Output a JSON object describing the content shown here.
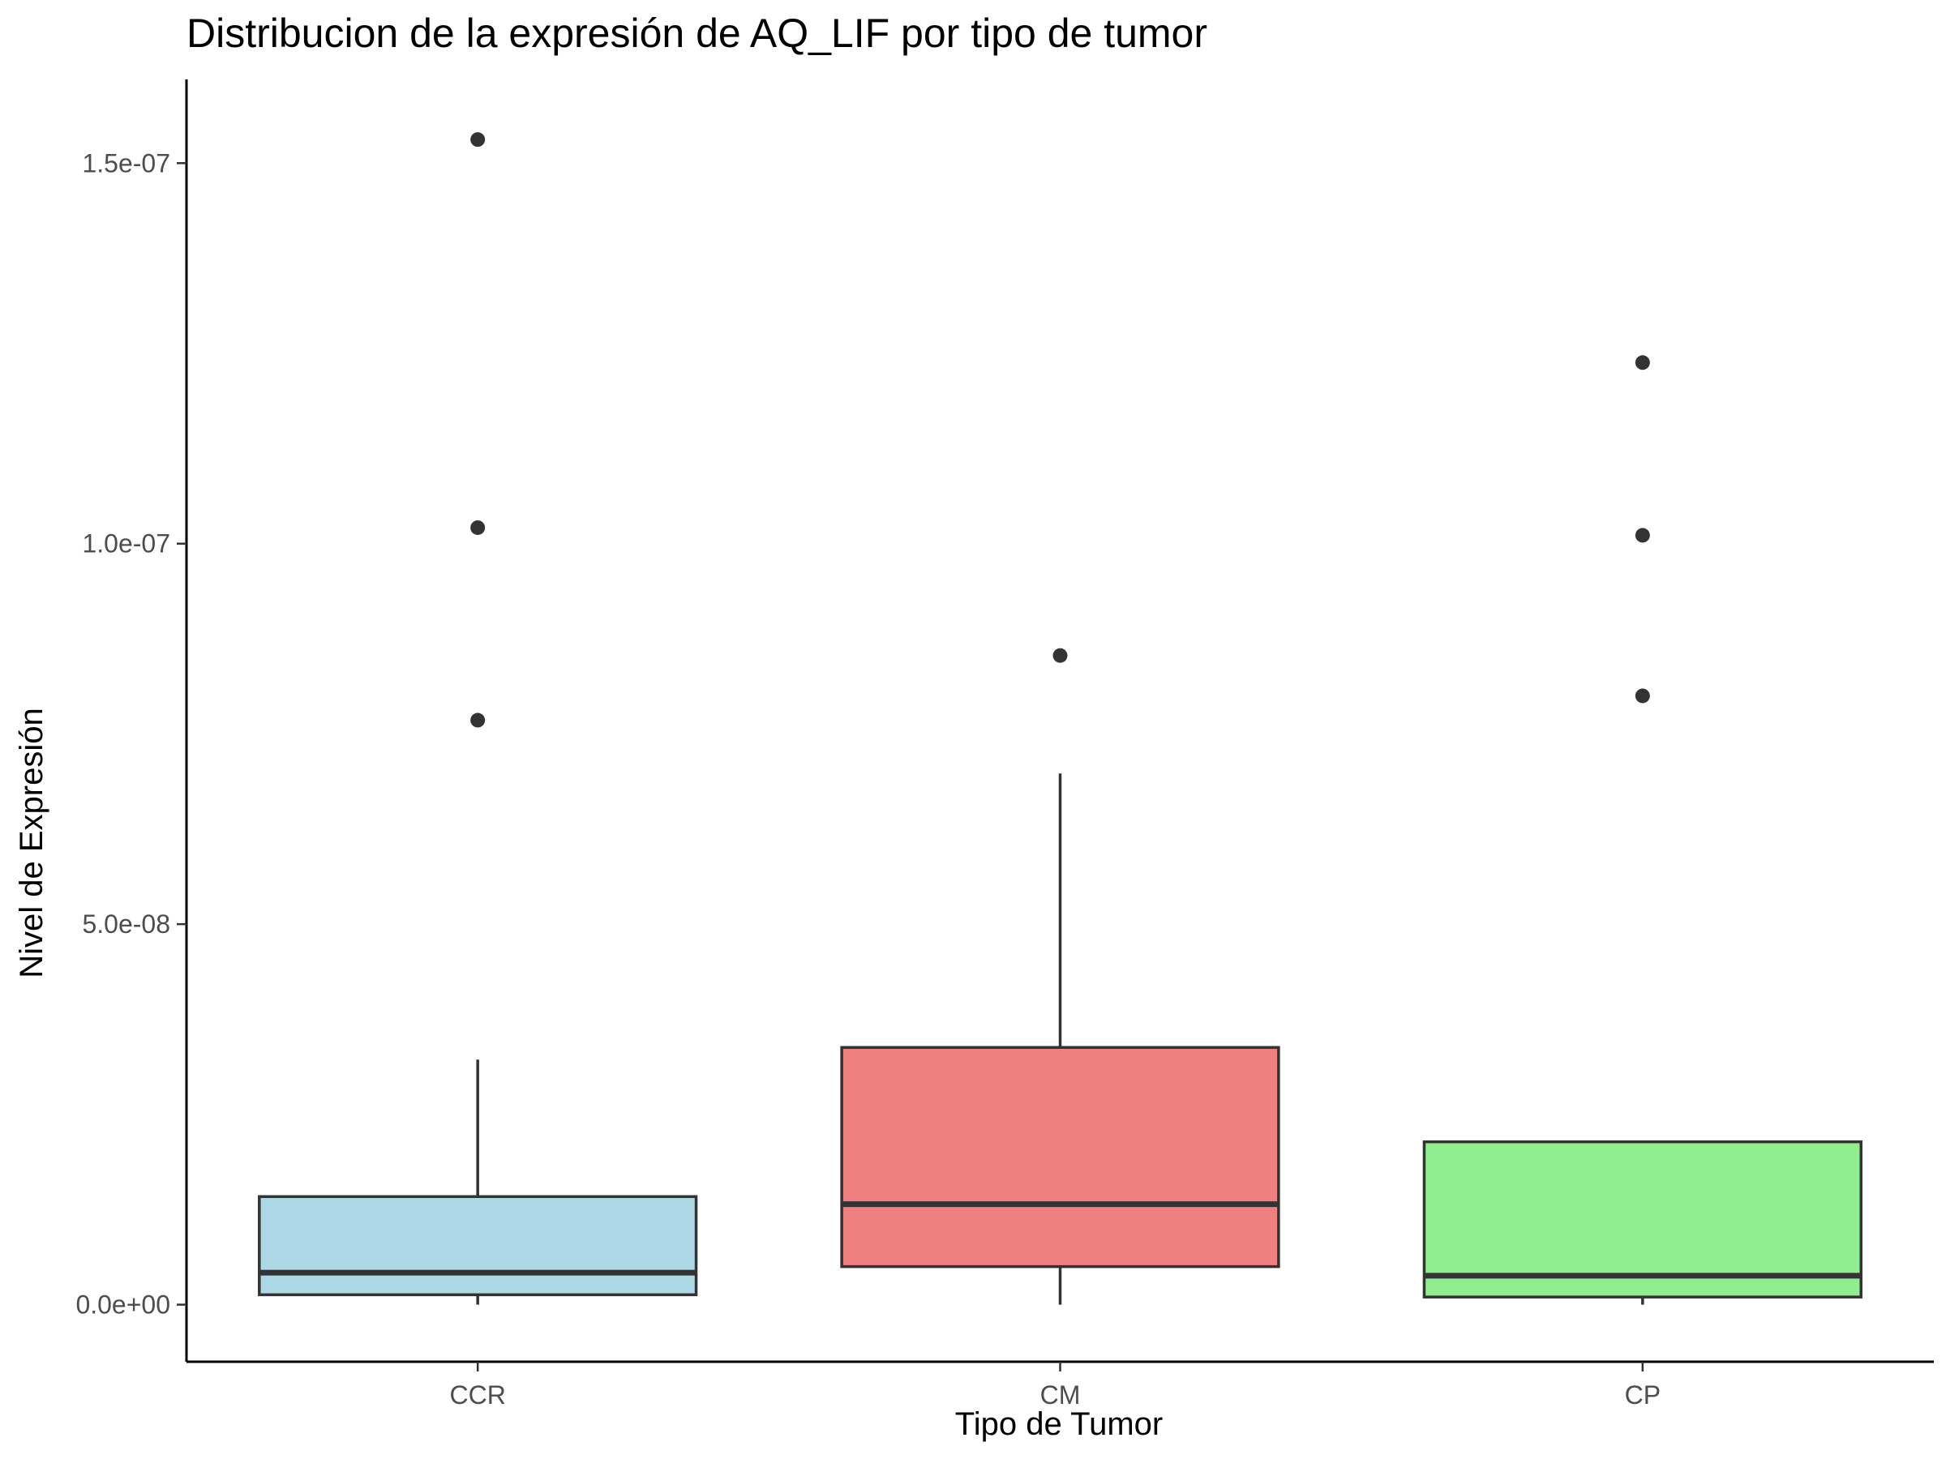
{
  "chart_data": {
    "type": "box",
    "title": "Distribucion de la expresión de AQ_LIF por tipo de tumor",
    "xlabel": "Tipo de Tumor",
    "ylabel": "Nivel de Expresión",
    "ylim": [
      -7.5e-09,
      1.61e-07
    ],
    "y_ticks": [
      {
        "value": 0,
        "label": "0.0e+00"
      },
      {
        "value": 5e-08,
        "label": "5.0e-08"
      },
      {
        "value": 1e-07,
        "label": "1.0e-07"
      },
      {
        "value": 1.5e-07,
        "label": "1.5e-07"
      }
    ],
    "categories": [
      "CCR",
      "CM",
      "CP"
    ],
    "groups": [
      {
        "category": "CCR",
        "color": "#add8e6",
        "whisker_low": 0.0,
        "q1": 1.3e-09,
        "median": 4.2e-09,
        "q3": 1.42e-08,
        "whisker_high": 3.22e-08,
        "outliers": [
          7.68e-08,
          1.021e-07,
          1.531e-07
        ]
      },
      {
        "category": "CM",
        "color": "#f08080",
        "whisker_low": 0.0,
        "q1": 5e-09,
        "median": 1.32e-08,
        "q3": 3.38e-08,
        "whisker_high": 6.98e-08,
        "outliers": [
          8.53e-08
        ]
      },
      {
        "category": "CP",
        "color": "#90ee90",
        "whisker_low": 0.0,
        "q1": 1e-09,
        "median": 3.8e-09,
        "q3": 2.14e-08,
        "whisker_high": 2.14e-08,
        "outliers": [
          8e-08,
          1.011e-07,
          1.238e-07
        ]
      }
    ],
    "grid": false,
    "legend": "none"
  }
}
